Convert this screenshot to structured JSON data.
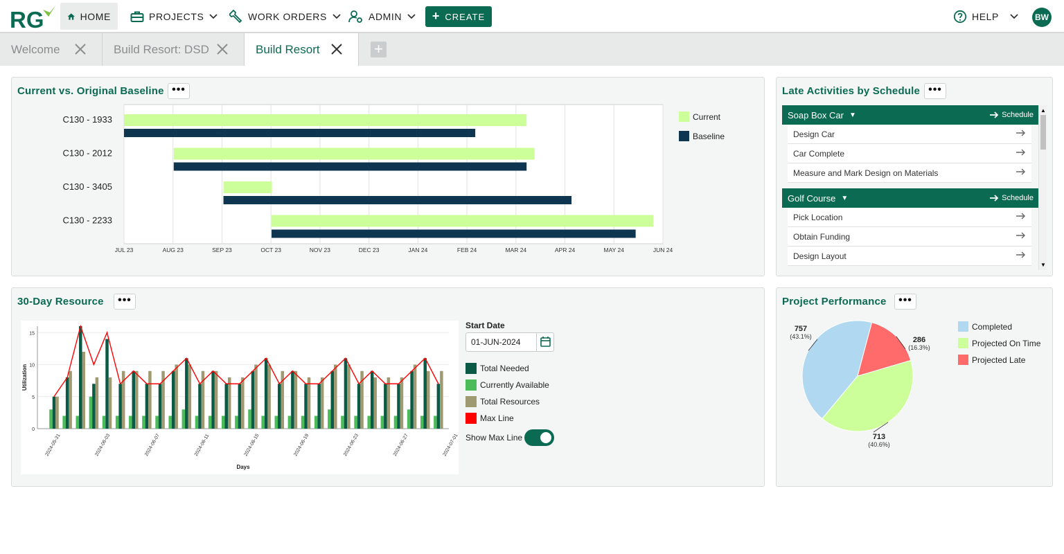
{
  "nav": {
    "home": "HOME",
    "projects": "PROJECTS",
    "work_orders": "WORK ORDERS",
    "admin": "ADMIN",
    "create": "CREATE",
    "help": "HELP",
    "avatar": "BW"
  },
  "tabs": [
    {
      "label": "Welcome"
    },
    {
      "label": "Build Resort: DSD"
    },
    {
      "label": "Build Resort"
    }
  ],
  "colors": {
    "brand": "#0b6b52",
    "current": "#ccff99",
    "baseline": "#0f3650",
    "total_needed": "#0b5a45",
    "currently_available": "#4cbb5a",
    "total_resources": "#a09a72",
    "max_line": "#ff0000",
    "completed": "#b0d8f0",
    "on_time": "#ccff99",
    "late": "#ff6a6a"
  },
  "baseline_panel": {
    "title": "Current vs. Original Baseline",
    "legend": [
      "Current",
      "Baseline"
    ]
  },
  "late_panel": {
    "title": "Late Activities by Schedule",
    "schedule_label": "Schedule",
    "groups": [
      {
        "name": "Soap Box Car",
        "items": [
          "Design Car",
          "Car Complete",
          "Measure and Mark Design on Materials"
        ]
      },
      {
        "name": "Golf Course",
        "items": [
          "Pick Location",
          "Obtain Funding",
          "Design Layout"
        ]
      }
    ]
  },
  "resource_panel": {
    "title": "30-Day Resource",
    "start_date_label": "Start Date",
    "start_date_value": "01-JUN-2024",
    "show_max_label": "Show Max Line",
    "legend": [
      "Total Needed",
      "Currently Available",
      "Total Resources",
      "Max Line"
    ]
  },
  "performance_panel": {
    "title": "Project Performance"
  },
  "chart_data": [
    {
      "type": "bar",
      "orientation": "horizontal",
      "title": "Current vs. Original Baseline",
      "categories": [
        "C130 - 1933",
        "C130 - 2012",
        "C130 - 3405",
        "C130 - 2233"
      ],
      "x_ticks": [
        "JUL 23",
        "AUG 23",
        "SEP 23",
        "OCT 23",
        "NOV 23",
        "DEC 23",
        "JAN 24",
        "FEB 24",
        "MAR 24",
        "APR 24",
        "MAY 24",
        "JUN 24"
      ],
      "series": [
        {
          "name": "Current",
          "start": [
            "2023-07-01",
            "2023-08-01",
            "2023-09-01",
            "2023-10-01"
          ],
          "end": [
            "2024-03-08",
            "2024-03-13",
            "2023-10-01",
            "2024-05-26"
          ]
        },
        {
          "name": "Baseline",
          "start": [
            "2023-07-01",
            "2023-08-01",
            "2023-09-01",
            "2023-10-01"
          ],
          "end": [
            "2024-02-05",
            "2024-03-08",
            "2024-04-05",
            "2024-05-15"
          ]
        }
      ],
      "grid": true,
      "legend": "right"
    },
    {
      "type": "bar",
      "title": "30-Day Resource",
      "xlabel": "Days",
      "ylabel": "Utilization",
      "ylim": [
        0,
        16
      ],
      "y_ticks": [
        0,
        5,
        10,
        15
      ],
      "x_ticks": [
        "2024-05-31",
        "2024-06-03",
        "2024-06-07",
        "2024-06-11",
        "2024-06-15",
        "2024-06-19",
        "2024-06-23",
        "2024-06-27",
        "2024-07-01"
      ],
      "categories": [
        "2024-06-01",
        "2024-06-02",
        "2024-06-03",
        "2024-06-04",
        "2024-06-05",
        "2024-06-06",
        "2024-06-07",
        "2024-06-08",
        "2024-06-09",
        "2024-06-10",
        "2024-06-11",
        "2024-06-12",
        "2024-06-13",
        "2024-06-14",
        "2024-06-15",
        "2024-06-16",
        "2024-06-17",
        "2024-06-18",
        "2024-06-19",
        "2024-06-20",
        "2024-06-21",
        "2024-06-22",
        "2024-06-23",
        "2024-06-24",
        "2024-06-25",
        "2024-06-26",
        "2024-06-27",
        "2024-06-28",
        "2024-06-29",
        "2024-06-30"
      ],
      "series": [
        {
          "name": "Total Needed",
          "values": [
            5,
            8,
            16,
            7,
            14,
            7,
            9,
            7,
            7,
            9,
            11,
            7,
            9,
            7,
            7,
            9,
            11,
            7,
            9,
            7,
            7,
            9,
            11,
            7,
            9,
            7,
            7,
            9,
            11,
            7
          ]
        },
        {
          "name": "Currently Available",
          "values": [
            3,
            2,
            2,
            5,
            2,
            2,
            2,
            2,
            2,
            2,
            3,
            2,
            2,
            2,
            2,
            3,
            2,
            2,
            2,
            2,
            2,
            3,
            2,
            2,
            2,
            2,
            2,
            3,
            2,
            2
          ]
        },
        {
          "name": "Total Resources",
          "values": [
            5,
            9,
            12,
            8,
            8,
            9,
            9,
            9,
            9,
            10,
            10,
            9,
            9,
            8,
            8,
            10,
            10,
            9,
            9,
            8,
            8,
            10,
            10,
            9,
            8,
            8,
            8,
            10,
            9,
            9
          ]
        },
        {
          "name": "Max Line",
          "values": [
            5,
            8,
            16,
            10,
            15,
            7,
            9,
            7,
            7,
            9,
            11,
            7,
            9,
            7,
            7,
            9,
            11,
            7,
            9,
            7,
            7,
            9,
            11,
            7,
            9,
            7,
            7,
            9,
            11,
            7
          ]
        }
      ],
      "grid": true,
      "legend": "right"
    },
    {
      "type": "pie",
      "title": "Project Performance",
      "labels": [
        "Completed",
        "Projected On Time",
        "Projected Late"
      ],
      "values": [
        757,
        713,
        286
      ],
      "percent_labels": [
        "(43.1%)",
        "(40.6%)",
        "(16.3%)"
      ],
      "value_labels": [
        "757",
        "713",
        "286"
      ],
      "legend": "right"
    }
  ]
}
